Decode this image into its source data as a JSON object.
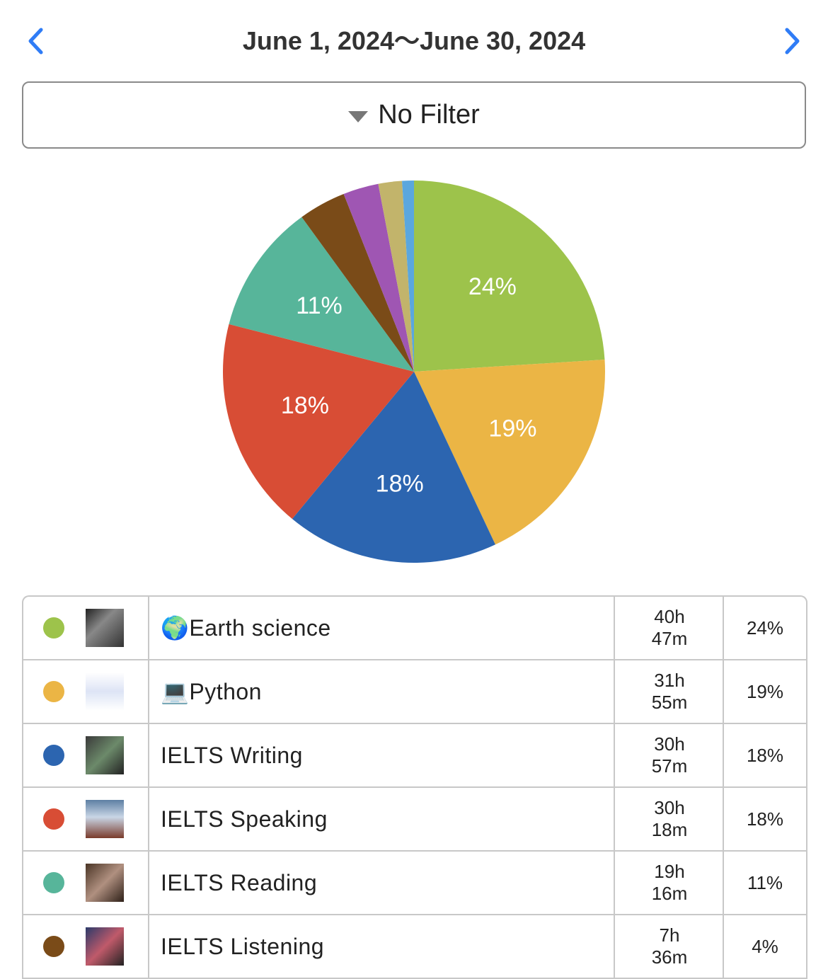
{
  "header": {
    "date_range": "June 1, 2024～June 30, 2024",
    "filter": "No Filter"
  },
  "chart_data": {
    "type": "pie",
    "values": [
      24,
      19,
      18,
      18,
      11,
      4,
      3,
      2,
      1
    ],
    "value_labels": [
      "24%",
      "19%",
      "18%",
      "18%",
      "11%",
      null,
      null,
      null,
      null
    ],
    "colors": [
      "#9dc34b",
      "#ebb545",
      "#2c65b0",
      "#d84d35",
      "#57b59a",
      "#7a4b18",
      "#9f56b3",
      "#c2b46b",
      "#5aa7de"
    ]
  },
  "table": {
    "rows": [
      {
        "name": "🌍Earth science",
        "time": [
          "40h",
          "47m"
        ],
        "percent": "24%"
      },
      {
        "name": "💻Python",
        "time": [
          "31h",
          "55m"
        ],
        "percent": "19%"
      },
      {
        "name": "IELTS Writing",
        "time": [
          "30h",
          "57m"
        ],
        "percent": "18%"
      },
      {
        "name": "IELTS Speaking",
        "time": [
          "30h",
          "18m"
        ],
        "percent": "18%"
      },
      {
        "name": "IELTS Reading",
        "time": [
          "19h",
          "16m"
        ],
        "percent": "11%"
      },
      {
        "name": "IELTS Listening",
        "time": [
          "7h",
          "36m"
        ],
        "percent": "4%"
      }
    ]
  }
}
